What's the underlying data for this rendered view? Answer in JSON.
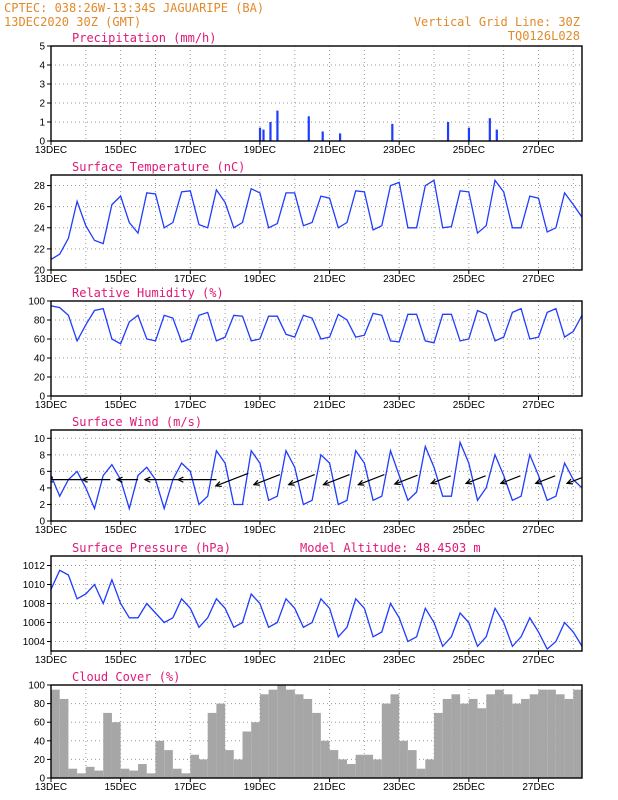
{
  "header": {
    "station_line": "CPTEC:   038:26W-13:34S   JAGUARIPE (BA)",
    "date_line": "13DEC2020 30Z (GMT)",
    "grid_line": "Vertical Grid Line: 30Z",
    "code": "TQ0126L028"
  },
  "x_tick_labels": [
    "13DEC",
    "15DEC",
    "17DEC",
    "19DEC",
    "21DEC",
    "23DEC",
    "25DEC",
    "27DEC"
  ],
  "colors": {
    "header": "#e08a2c",
    "title": "#e0187a",
    "line": "#1f3cff",
    "bar": "#1f3cff",
    "cloud": "#a6a6a6"
  },
  "chart_data": [
    {
      "type": "bar",
      "title": "Precipitation (mm/h)",
      "x_range_days": [
        13,
        28.25
      ],
      "ylim": [
        0,
        5
      ],
      "yticks": [
        "0",
        "1",
        "2",
        "3",
        "4",
        "5"
      ],
      "x": [
        19.0,
        19.1,
        19.3,
        19.5,
        20.4,
        20.8,
        21.3,
        22.8,
        24.4,
        25.0,
        25.6,
        25.8
      ],
      "values": [
        0.7,
        0.6,
        1.0,
        1.6,
        1.3,
        0.5,
        0.4,
        0.9,
        1.0,
        0.7,
        1.2,
        0.6
      ]
    },
    {
      "type": "line",
      "title": "Surface Temperature (nC)",
      "x_range_days": [
        13,
        28.25
      ],
      "ylim": [
        20,
        29
      ],
      "yticks": [
        "20",
        "22",
        "24",
        "26",
        "28"
      ],
      "x": [
        13.0,
        13.25,
        13.5,
        13.75,
        14.0,
        14.25,
        14.5,
        14.75,
        15.0,
        15.25,
        15.5,
        15.75,
        16.0,
        16.25,
        16.5,
        16.75,
        17.0,
        17.25,
        17.5,
        17.75,
        18.0,
        18.25,
        18.5,
        18.75,
        19.0,
        19.25,
        19.5,
        19.75,
        20.0,
        20.25,
        20.5,
        20.75,
        21.0,
        21.25,
        21.5,
        21.75,
        22.0,
        22.25,
        22.5,
        22.75,
        23.0,
        23.25,
        23.5,
        23.75,
        24.0,
        24.25,
        24.5,
        24.75,
        25.0,
        25.25,
        25.5,
        25.75,
        26.0,
        26.25,
        26.5,
        26.75,
        27.0,
        27.25,
        27.5,
        27.75,
        28.0,
        28.25
      ],
      "values": [
        21.0,
        21.5,
        23.0,
        26.5,
        24.2,
        22.8,
        22.5,
        26.2,
        27.0,
        24.5,
        23.5,
        27.3,
        27.2,
        24.0,
        24.5,
        27.4,
        27.5,
        24.3,
        24.0,
        27.6,
        26.4,
        24.0,
        24.5,
        27.7,
        27.3,
        24.0,
        24.4,
        27.3,
        27.3,
        24.2,
        24.5,
        27.0,
        26.8,
        24.0,
        24.5,
        27.5,
        27.4,
        23.8,
        24.2,
        28.0,
        28.3,
        24.0,
        24.0,
        28.0,
        28.5,
        24.0,
        24.1,
        27.5,
        27.4,
        23.5,
        24.2,
        28.5,
        27.4,
        24.0,
        24.0,
        27.0,
        26.8,
        23.6,
        24.0,
        27.3,
        26.2,
        25.0
      ]
    },
    {
      "type": "line",
      "title": "Relative Humidity (%)",
      "x_range_days": [
        13,
        28.25
      ],
      "ylim": [
        0,
        100
      ],
      "yticks": [
        "0",
        "20",
        "40",
        "60",
        "80",
        "100"
      ],
      "x": [
        13.0,
        13.25,
        13.5,
        13.75,
        14.0,
        14.25,
        14.5,
        14.75,
        15.0,
        15.25,
        15.5,
        15.75,
        16.0,
        16.25,
        16.5,
        16.75,
        17.0,
        17.25,
        17.5,
        17.75,
        18.0,
        18.25,
        18.5,
        18.75,
        19.0,
        19.25,
        19.5,
        19.75,
        20.0,
        20.25,
        20.5,
        20.75,
        21.0,
        21.25,
        21.5,
        21.75,
        22.0,
        22.25,
        22.5,
        22.75,
        23.0,
        23.25,
        23.5,
        23.75,
        24.0,
        24.25,
        24.5,
        24.75,
        25.0,
        25.25,
        25.5,
        25.75,
        26.0,
        26.25,
        26.5,
        26.75,
        27.0,
        27.25,
        27.5,
        27.75,
        28.0,
        28.25
      ],
      "values": [
        95,
        93,
        85,
        58,
        75,
        90,
        92,
        60,
        55,
        78,
        85,
        60,
        58,
        85,
        82,
        57,
        60,
        85,
        88,
        58,
        62,
        85,
        84,
        58,
        60,
        84,
        84,
        65,
        62,
        85,
        82,
        60,
        62,
        86,
        80,
        62,
        64,
        87,
        85,
        58,
        57,
        86,
        86,
        58,
        56,
        86,
        86,
        58,
        60,
        90,
        86,
        58,
        62,
        88,
        92,
        60,
        62,
        88,
        92,
        62,
        68,
        85
      ]
    },
    {
      "type": "line",
      "title": "Surface Wind (m/s)",
      "x_range_days": [
        13,
        28.25
      ],
      "ylim": [
        0,
        11
      ],
      "yticks": [
        "0",
        "2",
        "4",
        "6",
        "8",
        "10"
      ],
      "x": [
        13.0,
        13.25,
        13.5,
        13.75,
        14.0,
        14.25,
        14.5,
        14.75,
        15.0,
        15.25,
        15.5,
        15.75,
        16.0,
        16.25,
        16.5,
        16.75,
        17.0,
        17.25,
        17.5,
        17.75,
        18.0,
        18.25,
        18.5,
        18.75,
        19.0,
        19.25,
        19.5,
        19.75,
        20.0,
        20.25,
        20.5,
        20.75,
        21.0,
        21.25,
        21.5,
        21.75,
        22.0,
        22.25,
        22.5,
        22.75,
        23.0,
        23.25,
        23.5,
        23.75,
        24.0,
        24.25,
        24.5,
        24.75,
        25.0,
        25.25,
        25.5,
        25.75,
        26.0,
        26.25,
        26.5,
        26.75,
        27.0,
        27.25,
        27.5,
        27.75,
        28.0,
        28.25
      ],
      "values": [
        5.5,
        3.0,
        5.0,
        6.0,
        4.0,
        1.5,
        5.5,
        6.8,
        5.0,
        1.5,
        5.5,
        6.5,
        5.0,
        1.5,
        5.0,
        7.0,
        6.0,
        2.0,
        3.0,
        8.5,
        7.0,
        2.0,
        2.0,
        8.5,
        7.0,
        2.5,
        3.0,
        8.5,
        6.5,
        2.0,
        2.5,
        8.0,
        7.0,
        2.0,
        2.5,
        8.5,
        7.0,
        2.5,
        3.0,
        8.5,
        5.5,
        2.5,
        3.5,
        9.0,
        6.5,
        3.0,
        3.0,
        9.5,
        7.0,
        2.5,
        4.0,
        8.0,
        5.5,
        2.5,
        3.0,
        8.0,
        5.5,
        2.5,
        3.0,
        7.0,
        5.0,
        4.0
      ],
      "wind_vectors": [
        {
          "x": 13.4,
          "speed": 5.0,
          "direction": "W"
        },
        {
          "x": 14.3,
          "speed": 4.0,
          "direction": "W"
        },
        {
          "x": 15.2,
          "speed": 3.0,
          "direction": "W"
        },
        {
          "x": 16.2,
          "speed": 5.0,
          "direction": "W"
        },
        {
          "x": 17.2,
          "speed": 5.5,
          "direction": "W"
        },
        {
          "x": 18.2,
          "speed": 5.0,
          "direction": "SW"
        },
        {
          "x": 19.2,
          "speed": 4.0,
          "direction": "SW"
        },
        {
          "x": 20.2,
          "speed": 4.0,
          "direction": "SW"
        },
        {
          "x": 21.2,
          "speed": 4.0,
          "direction": "SW"
        },
        {
          "x": 22.2,
          "speed": 4.0,
          "direction": "SW"
        },
        {
          "x": 23.2,
          "speed": 3.5,
          "direction": "SW"
        },
        {
          "x": 24.2,
          "speed": 3.0,
          "direction": "SW"
        },
        {
          "x": 25.2,
          "speed": 3.0,
          "direction": "SW"
        },
        {
          "x": 26.2,
          "speed": 3.0,
          "direction": "SW"
        },
        {
          "x": 27.2,
          "speed": 3.0,
          "direction": "SW"
        },
        {
          "x": 28.1,
          "speed": 3.0,
          "direction": "SW"
        }
      ]
    },
    {
      "type": "line",
      "title": "Surface Pressure (hPa)",
      "annotation": "Model Altitude: 48.4503 m",
      "x_range_days": [
        13,
        28.25
      ],
      "ylim": [
        1003,
        1013
      ],
      "yticks": [
        "1004",
        "1006",
        "1008",
        "1010",
        "1012"
      ],
      "x": [
        13.0,
        13.25,
        13.5,
        13.75,
        14.0,
        14.25,
        14.5,
        14.75,
        15.0,
        15.25,
        15.5,
        15.75,
        16.0,
        16.25,
        16.5,
        16.75,
        17.0,
        17.25,
        17.5,
        17.75,
        18.0,
        18.25,
        18.5,
        18.75,
        19.0,
        19.25,
        19.5,
        19.75,
        20.0,
        20.25,
        20.5,
        20.75,
        21.0,
        21.25,
        21.5,
        21.75,
        22.0,
        22.25,
        22.5,
        22.75,
        23.0,
        23.25,
        23.5,
        23.75,
        24.0,
        24.25,
        24.5,
        24.75,
        25.0,
        25.25,
        25.5,
        25.75,
        26.0,
        26.25,
        26.5,
        26.75,
        27.0,
        27.25,
        27.5,
        27.75,
        28.0,
        28.25
      ],
      "values": [
        1009.5,
        1011.5,
        1011.0,
        1008.5,
        1009.0,
        1010.0,
        1008.0,
        1010.5,
        1008.0,
        1006.5,
        1006.5,
        1008.0,
        1007.0,
        1006.0,
        1006.5,
        1008.5,
        1007.5,
        1005.5,
        1006.5,
        1008.5,
        1007.5,
        1005.5,
        1006.0,
        1009.0,
        1008.0,
        1005.5,
        1006.0,
        1008.5,
        1007.5,
        1005.5,
        1006.0,
        1008.5,
        1007.5,
        1004.5,
        1005.5,
        1008.5,
        1007.5,
        1004.5,
        1005.0,
        1008.0,
        1006.5,
        1004.0,
        1004.5,
        1007.5,
        1006.0,
        1003.5,
        1004.5,
        1007.0,
        1006.0,
        1003.5,
        1004.5,
        1007.5,
        1006.0,
        1003.5,
        1004.5,
        1006.5,
        1005.0,
        1003.2,
        1004.0,
        1006.0,
        1005.0,
        1003.5
      ]
    },
    {
      "type": "bar",
      "title": "Cloud Cover (%)",
      "x_range_days": [
        13,
        28.25
      ],
      "ylim": [
        0,
        100
      ],
      "yticks": [
        "0",
        "20",
        "40",
        "60",
        "80",
        "100"
      ],
      "x": [
        13.0,
        13.25,
        13.5,
        13.75,
        14.0,
        14.25,
        14.5,
        14.75,
        15.0,
        15.25,
        15.5,
        15.75,
        16.0,
        16.25,
        16.5,
        16.75,
        17.0,
        17.25,
        17.5,
        17.75,
        18.0,
        18.25,
        18.5,
        18.75,
        19.0,
        19.25,
        19.5,
        19.75,
        20.0,
        20.25,
        20.5,
        20.75,
        21.0,
        21.25,
        21.5,
        21.75,
        22.0,
        22.25,
        22.5,
        22.75,
        23.0,
        23.25,
        23.5,
        23.75,
        24.0,
        24.25,
        24.5,
        24.75,
        25.0,
        25.25,
        25.5,
        25.75,
        26.0,
        26.25,
        26.5,
        26.75,
        27.0,
        27.25,
        27.5,
        27.75,
        28.0,
        28.25
      ],
      "values": [
        95,
        85,
        10,
        5,
        12,
        8,
        70,
        60,
        10,
        8,
        15,
        5,
        40,
        30,
        10,
        5,
        25,
        20,
        70,
        80,
        30,
        20,
        50,
        60,
        90,
        95,
        100,
        95,
        90,
        85,
        70,
        40,
        30,
        20,
        15,
        25,
        25,
        20,
        80,
        90,
        40,
        30,
        10,
        20,
        70,
        85,
        90,
        80,
        85,
        75,
        90,
        95,
        90,
        80,
        85,
        90,
        95,
        95,
        90,
        85,
        95,
        100
      ]
    }
  ]
}
